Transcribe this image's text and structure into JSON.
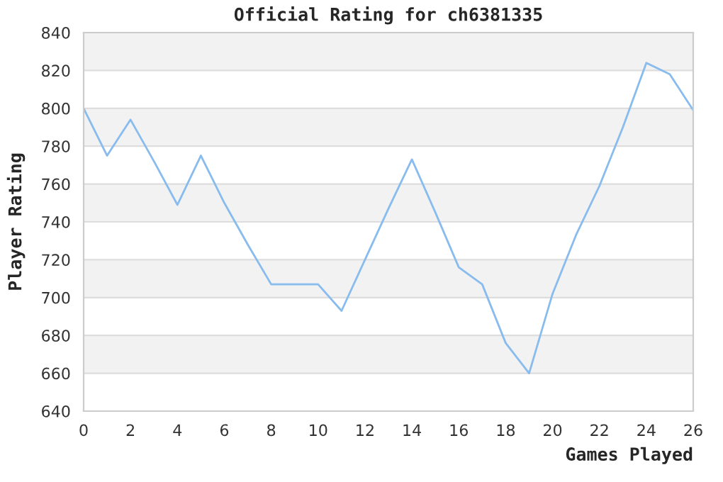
{
  "chart_data": {
    "type": "line",
    "title": "Official Rating for ch6381335",
    "xlabel": "Games Played",
    "ylabel": "Player Rating",
    "x": [
      0,
      1,
      2,
      3,
      4,
      5,
      6,
      7,
      8,
      9,
      10,
      11,
      12,
      13,
      14,
      15,
      16,
      17,
      18,
      19,
      20,
      21,
      22,
      23,
      24,
      25,
      26
    ],
    "series": [
      {
        "color": "#88bbee",
        "values": [
          800,
          775,
          794,
          772,
          749,
          775,
          750,
          728,
          707,
          707,
          707,
          693,
          720,
          747,
          773,
          745,
          716,
          707,
          676,
          660,
          702,
          733,
          759,
          790,
          824,
          818,
          799
        ]
      }
    ],
    "xlim": [
      0,
      26
    ],
    "xticks": [
      0,
      2,
      4,
      6,
      8,
      10,
      12,
      14,
      16,
      18,
      20,
      22,
      24,
      26
    ],
    "ylim": [
      640,
      840
    ],
    "yticks": [
      640,
      660,
      680,
      700,
      720,
      740,
      760,
      780,
      800,
      820,
      840
    ],
    "grid": "y",
    "marker": "none",
    "line_style": "solid"
  }
}
